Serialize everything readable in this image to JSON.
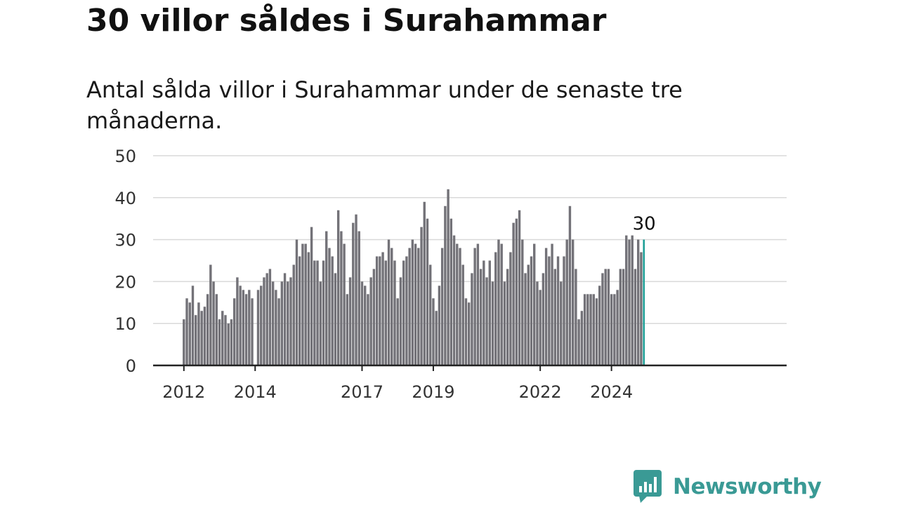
{
  "title": "30 villor såldes i Surahammar",
  "subtitle": "Antal sålda villor i Surahammar under de senaste tre månaderna.",
  "brand": {
    "name": "Newsworthy",
    "icon": "newsworthy-logo-icon",
    "color": "#3a9a95"
  },
  "colors": {
    "bar": "#737278",
    "highlight": "#1e9f97",
    "grid": "#d9d9d9",
    "axis": "#222222"
  },
  "chart_data": {
    "type": "bar",
    "title": "30 villor såldes i Surahammar",
    "subtitle": "Antal sålda villor i Surahammar under de senaste tre månaderna.",
    "xlabel": "",
    "ylabel": "",
    "ylim": [
      0,
      50
    ],
    "yticks": [
      "0",
      "10",
      "20",
      "30",
      "40",
      "50"
    ],
    "xticks": [
      {
        "label": "2012",
        "value": "2012-01"
      },
      {
        "label": "2014",
        "value": "2014-01"
      },
      {
        "label": "2017",
        "value": "2017-01"
      },
      {
        "label": "2019",
        "value": "2019-01"
      },
      {
        "label": "2022",
        "value": "2022-01"
      },
      {
        "label": "2024",
        "value": "2024-01"
      }
    ],
    "grid": true,
    "frequency": "monthly",
    "start": "2012-01",
    "values": [
      11,
      16,
      15,
      19,
      12,
      15,
      13,
      14,
      17,
      24,
      20,
      17,
      11,
      13,
      12,
      10,
      11,
      16,
      21,
      19,
      18,
      17,
      18,
      16,
      0,
      18,
      19,
      21,
      22,
      23,
      20,
      18,
      16,
      20,
      22,
      20,
      21,
      24,
      30,
      26,
      29,
      29,
      27,
      33,
      25,
      25,
      20,
      25,
      32,
      28,
      26,
      22,
      37,
      32,
      29,
      17,
      21,
      34,
      36,
      32,
      20,
      19,
      17,
      21,
      23,
      26,
      26,
      27,
      25,
      30,
      28,
      25,
      16,
      21,
      25,
      26,
      28,
      30,
      29,
      28,
      33,
      39,
      35,
      24,
      16,
      13,
      19,
      28,
      38,
      42,
      35,
      31,
      29,
      28,
      24,
      16,
      15,
      22,
      28,
      29,
      23,
      25,
      21,
      25,
      20,
      27,
      30,
      29,
      20,
      23,
      27,
      34,
      35,
      37,
      30,
      22,
      24,
      26,
      29,
      20,
      18,
      22,
      28,
      26,
      29,
      23,
      26,
      20,
      26,
      30,
      38,
      30,
      23,
      11,
      13,
      17,
      17,
      17,
      17,
      16,
      19,
      22,
      23,
      23,
      17,
      17,
      18,
      23,
      23,
      31,
      30,
      31,
      23,
      30,
      27,
      30
    ],
    "highlight": {
      "value": 30,
      "label": "30"
    }
  }
}
